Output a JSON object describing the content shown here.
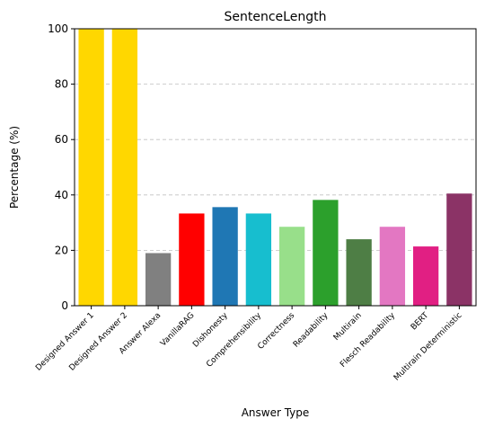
{
  "chart_data": {
    "type": "bar",
    "title": "SentenceLength",
    "xlabel": "Answer Type",
    "ylabel": "Percentage (%)",
    "ylim": [
      0,
      100
    ],
    "yticks": [
      0,
      20,
      40,
      60,
      80,
      100
    ],
    "grid": "y-dashed",
    "categories": [
      "Designed Answer 1",
      "Designed Answer 2",
      "Answer Alexa",
      "VanillaRAG",
      "Dishonesty",
      "Comprehensibility",
      "Correctness",
      "Readability",
      "Multirain",
      "Flesch Readability",
      "BERT",
      "Multirain Deterministic"
    ],
    "values": [
      100,
      100,
      19,
      33.3,
      35.6,
      33.3,
      28.5,
      38.2,
      24,
      28.5,
      21.4,
      40.5
    ],
    "colors": [
      "#ffd700",
      "#ffd700",
      "#808080",
      "#ff0000",
      "#1f77b4",
      "#17becf",
      "#98df8a",
      "#2ca02c",
      "#4e7e45",
      "#e377c2",
      "#e11f83",
      "#8b3366"
    ]
  }
}
